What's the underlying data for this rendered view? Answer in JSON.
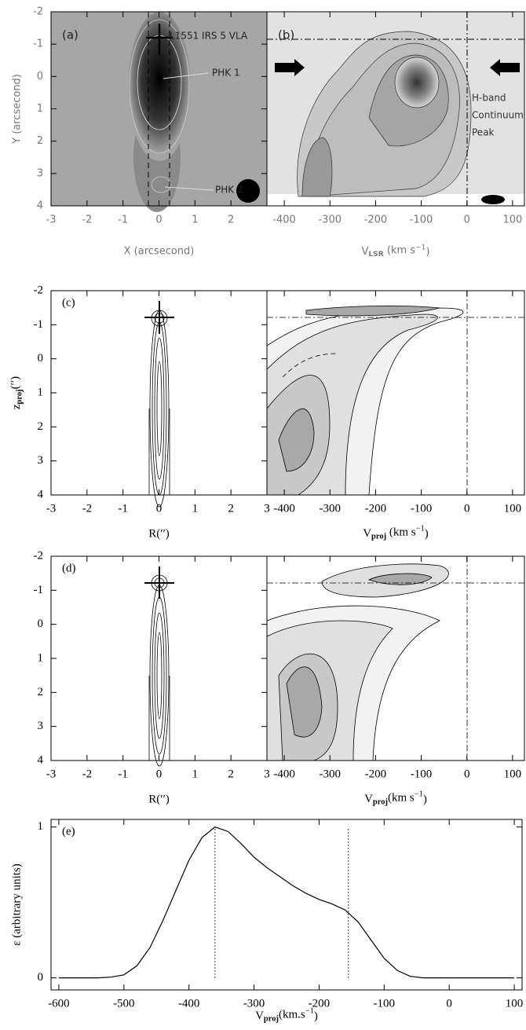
{
  "chart_data": [
    {
      "type": "contour",
      "panel": "(a)",
      "annotations": [
        "L1551 IRS 5 VLA",
        "PHK 1",
        "PHK 2"
      ],
      "xlabel": "X (arcsecond)",
      "ylabel": "Y (arcsecond)",
      "xlim": [
        -3,
        3
      ],
      "xticks": [
        -3,
        -2,
        -1,
        0,
        1,
        2
      ],
      "ylim": [
        -2,
        4
      ],
      "yticks": [
        -2,
        -1,
        0,
        1,
        2,
        3,
        4
      ],
      "y_inverted": true
    },
    {
      "type": "contour",
      "panel": "(b)",
      "annotations": [
        "H-band",
        "Continuum",
        "Peak"
      ],
      "xlabel_parts": [
        "V",
        "LSR",
        " (km s",
        "−1",
        ")"
      ],
      "xlim": [
        -438,
        126
      ],
      "xticks": [
        -400,
        -300,
        -200,
        -100,
        0,
        100
      ]
    },
    {
      "type": "contour",
      "panel": "(c)",
      "ylabel_parts": [
        "z",
        "proj",
        "(′′)"
      ],
      "xlabel": "R(′′)",
      "xlim": [
        -3,
        3
      ],
      "xticks": [
        -3,
        -2,
        -1,
        0,
        1,
        2,
        3
      ],
      "ylim": [
        -2,
        4
      ],
      "yticks": [
        -2,
        -1,
        0,
        1,
        2,
        3,
        4
      ],
      "y_inverted": true
    },
    {
      "type": "contour",
      "xlabel_parts": [
        "V",
        "proj",
        " (km s",
        "−1",
        ")"
      ],
      "xlim": [
        -438,
        126
      ],
      "xticks": [
        -400,
        -300,
        -200,
        -100,
        0,
        100
      ]
    },
    {
      "type": "contour",
      "panel": "(d)",
      "xlabel": "R(′′)",
      "xlim": [
        -3,
        3
      ],
      "xticks": [
        -3,
        -2,
        -1,
        0,
        1,
        2,
        3
      ],
      "ylim": [
        -2,
        4
      ],
      "yticks": [
        -2,
        -1,
        0,
        1,
        2,
        3,
        4
      ],
      "y_inverted": true
    },
    {
      "type": "contour",
      "xlabel_parts": [
        "V",
        "proj",
        "(km s",
        "−1",
        ")"
      ],
      "xlim": [
        -438,
        126
      ],
      "xticks": [
        -400,
        -300,
        -200,
        -100,
        0,
        100
      ]
    },
    {
      "type": "line",
      "panel": "(e)",
      "ylabel": "ε (arbitrary units)",
      "xlabel_parts": [
        "V",
        "proj",
        "(km.s",
        "−1",
        ")"
      ],
      "x": [
        -600,
        -540,
        -520,
        -500,
        -480,
        -460,
        -440,
        -420,
        -400,
        -380,
        -360,
        -340,
        -320,
        -300,
        -280,
        -260,
        -240,
        -220,
        -200,
        -180,
        -160,
        -140,
        -120,
        -100,
        -80,
        -60,
        -40,
        0,
        100
      ],
      "values": [
        0,
        0,
        0.005,
        0.02,
        0.08,
        0.2,
        0.38,
        0.58,
        0.78,
        0.93,
        1.0,
        0.97,
        0.89,
        0.8,
        0.73,
        0.67,
        0.61,
        0.56,
        0.52,
        0.49,
        0.45,
        0.37,
        0.25,
        0.13,
        0.05,
        0.01,
        0,
        0,
        0
      ],
      "color": "#000",
      "vlines": [
        -360,
        -155
      ],
      "xlim": [
        -612,
        112
      ],
      "xticks": [
        -600,
        -500,
        -400,
        -300,
        -200,
        -100,
        0,
        100
      ],
      "ylim": [
        -0.08,
        1.05
      ],
      "yticks": [
        0,
        1
      ]
    }
  ]
}
